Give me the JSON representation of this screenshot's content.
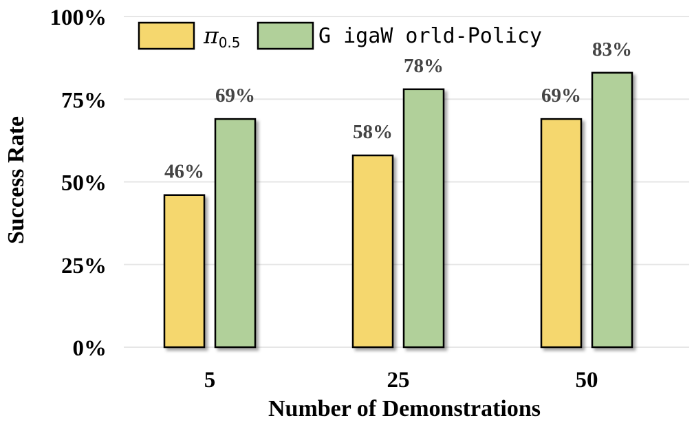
{
  "chart_data": {
    "type": "bar",
    "categories": [
      "5",
      "25",
      "50"
    ],
    "series": [
      {
        "name": "π0.5",
        "values": [
          46,
          58,
          69
        ],
        "labels": [
          "46%",
          "58%",
          "69%"
        ],
        "color": "#f5d76e"
      },
      {
        "name": "GigaWorld-Policy",
        "values": [
          69,
          78,
          83
        ],
        "labels": [
          "69%",
          "78%",
          "83%"
        ],
        "color": "#b1d09a"
      }
    ],
    "xlabel": "Number of Demonstrations",
    "ylabel": "Success Rate",
    "ylim": [
      0,
      100
    ],
    "yticks": [
      {
        "value": 0,
        "label": "0%"
      },
      {
        "value": 25,
        "label": "25%"
      },
      {
        "value": 50,
        "label": "50%"
      },
      {
        "value": 75,
        "label": "75%"
      },
      {
        "value": 100,
        "label": "100%"
      }
    ],
    "grid": true,
    "legend_position": "top-left"
  },
  "legend": {
    "pi_symbol": "π",
    "pi_subscript": "0.5",
    "policy_label": "G igaW orld-Policy"
  }
}
